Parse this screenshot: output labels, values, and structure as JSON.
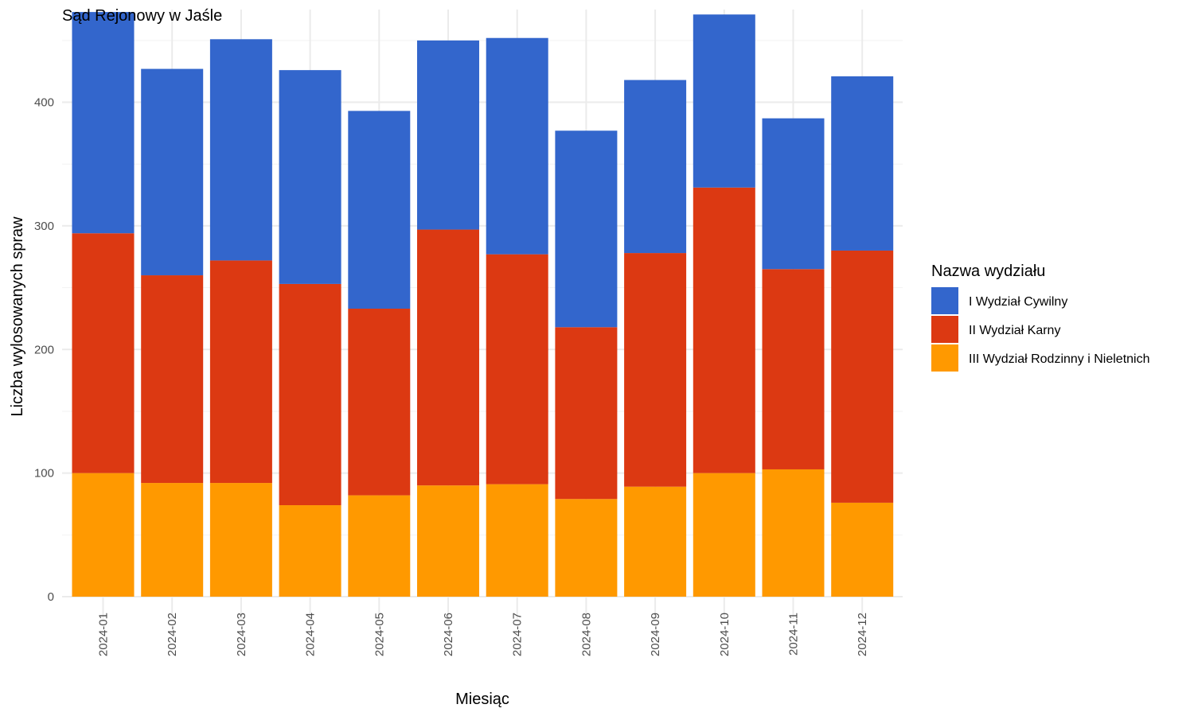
{
  "chart_data": {
    "type": "bar",
    "stacked": true,
    "title": "Sąd Rejonowy w Jaśle",
    "xlabel": "Miesiąc",
    "ylabel": "Liczba wylosowanych spraw",
    "ylim": [
      0,
      475
    ],
    "yticks": [
      0,
      100,
      200,
      300,
      400
    ],
    "grid": true,
    "legend_position": "right",
    "legend_title": "Nazwa wydziału",
    "categories": [
      "2024-01",
      "2024-02",
      "2024-03",
      "2024-04",
      "2024-05",
      "2024-06",
      "2024-07",
      "2024-08",
      "2024-09",
      "2024-10",
      "2024-11",
      "2024-12"
    ],
    "series": [
      {
        "name": "I Wydział Cywilny",
        "color": "#3366cc",
        "values": [
          179,
          167,
          179,
          173,
          160,
          153,
          175,
          159,
          140,
          140,
          122,
          141
        ]
      },
      {
        "name": "II Wydział Karny",
        "color": "#dc3912",
        "values": [
          194,
          168,
          180,
          179,
          151,
          207,
          186,
          139,
          189,
          231,
          162,
          204
        ]
      },
      {
        "name": "III Wydział Rodzinny i Nieletnich",
        "color": "#ff9900",
        "values": [
          100,
          92,
          92,
          74,
          82,
          90,
          91,
          79,
          89,
          100,
          103,
          76
        ]
      }
    ]
  }
}
